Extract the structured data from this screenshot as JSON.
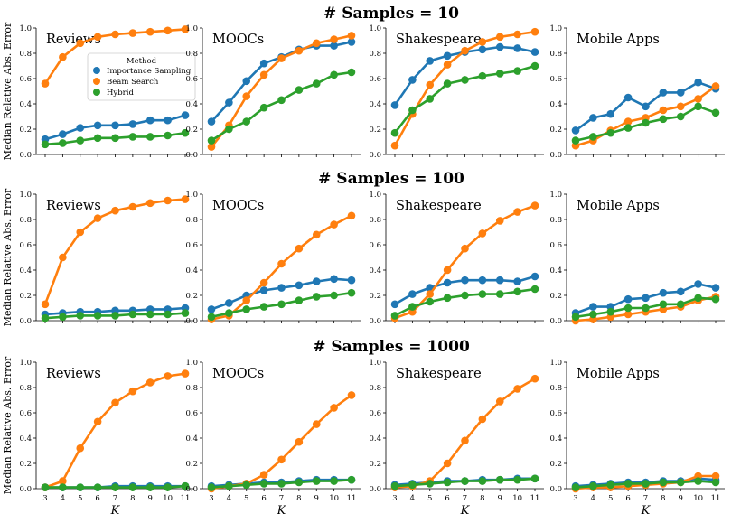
{
  "chart_data": {
    "type": "line",
    "x": [
      3,
      4,
      5,
      6,
      7,
      8,
      9,
      10,
      11
    ],
    "xlabel": "K",
    "ylabel": "Median Relative Abs. Error",
    "ylim": [
      0,
      1.0
    ],
    "yticks": [
      "0.0",
      "0.2",
      "0.4",
      "0.6",
      "0.8",
      "1.0"
    ],
    "grid": false,
    "legend": {
      "title": "Method",
      "placement": "center-right of first panel",
      "entries": [
        {
          "name": "Importance Sampling",
          "color": "#1f77b4"
        },
        {
          "name": "Beam Search",
          "color": "#ff7f0e"
        },
        {
          "name": "Hybrid",
          "color": "#2ca02c"
        }
      ]
    },
    "rows": [
      {
        "title": "# Samples = 10",
        "panels": [
          {
            "title": "Reviews",
            "series": [
              {
                "name": "Importance Sampling",
                "values": [
                  0.12,
                  0.16,
                  0.21,
                  0.23,
                  0.23,
                  0.24,
                  0.27,
                  0.27,
                  0.31
                ]
              },
              {
                "name": "Beam Search",
                "values": [
                  0.56,
                  0.77,
                  0.88,
                  0.93,
                  0.95,
                  0.96,
                  0.97,
                  0.98,
                  0.99
                ]
              },
              {
                "name": "Hybrid",
                "values": [
                  0.08,
                  0.09,
                  0.11,
                  0.13,
                  0.13,
                  0.14,
                  0.14,
                  0.15,
                  0.17
                ]
              }
            ]
          },
          {
            "title": "MOOCs",
            "series": [
              {
                "name": "Importance Sampling",
                "values": [
                  0.26,
                  0.41,
                  0.58,
                  0.72,
                  0.77,
                  0.83,
                  0.86,
                  0.86,
                  0.89
                ]
              },
              {
                "name": "Beam Search",
                "values": [
                  0.06,
                  0.23,
                  0.46,
                  0.63,
                  0.76,
                  0.82,
                  0.88,
                  0.91,
                  0.94
                ]
              },
              {
                "name": "Hybrid",
                "values": [
                  0.11,
                  0.2,
                  0.26,
                  0.37,
                  0.43,
                  0.51,
                  0.56,
                  0.63,
                  0.65
                ]
              }
            ]
          },
          {
            "title": "Shakespeare",
            "series": [
              {
                "name": "Importance Sampling",
                "values": [
                  0.39,
                  0.59,
                  0.74,
                  0.78,
                  0.81,
                  0.83,
                  0.85,
                  0.84,
                  0.81
                ]
              },
              {
                "name": "Beam Search",
                "values": [
                  0.07,
                  0.32,
                  0.55,
                  0.71,
                  0.82,
                  0.89,
                  0.93,
                  0.95,
                  0.97
                ]
              },
              {
                "name": "Hybrid",
                "values": [
                  0.17,
                  0.35,
                  0.44,
                  0.56,
                  0.59,
                  0.62,
                  0.64,
                  0.66,
                  0.7
                ]
              }
            ]
          },
          {
            "title": "Mobile Apps",
            "series": [
              {
                "name": "Importance Sampling",
                "values": [
                  0.19,
                  0.29,
                  0.32,
                  0.45,
                  0.38,
                  0.49,
                  0.49,
                  0.57,
                  0.52
                ]
              },
              {
                "name": "Beam Search",
                "values": [
                  0.07,
                  0.11,
                  0.19,
                  0.26,
                  0.29,
                  0.35,
                  0.38,
                  0.44,
                  0.54
                ]
              },
              {
                "name": "Hybrid",
                "values": [
                  0.11,
                  0.14,
                  0.17,
                  0.21,
                  0.25,
                  0.28,
                  0.3,
                  0.38,
                  0.33
                ]
              }
            ]
          }
        ]
      },
      {
        "title": "# Samples = 100",
        "panels": [
          {
            "title": "Reviews",
            "series": [
              {
                "name": "Importance Sampling",
                "values": [
                  0.05,
                  0.06,
                  0.07,
                  0.07,
                  0.08,
                  0.08,
                  0.09,
                  0.09,
                  0.1
                ]
              },
              {
                "name": "Beam Search",
                "values": [
                  0.13,
                  0.5,
                  0.7,
                  0.81,
                  0.87,
                  0.9,
                  0.93,
                  0.95,
                  0.96
                ]
              },
              {
                "name": "Hybrid",
                "values": [
                  0.02,
                  0.03,
                  0.04,
                  0.04,
                  0.04,
                  0.05,
                  0.05,
                  0.05,
                  0.06
                ]
              }
            ]
          },
          {
            "title": "MOOCs",
            "series": [
              {
                "name": "Importance Sampling",
                "values": [
                  0.09,
                  0.14,
                  0.2,
                  0.24,
                  0.26,
                  0.28,
                  0.31,
                  0.33,
                  0.32
                ]
              },
              {
                "name": "Beam Search",
                "values": [
                  0.01,
                  0.04,
                  0.16,
                  0.3,
                  0.45,
                  0.57,
                  0.68,
                  0.76,
                  0.83
                ]
              },
              {
                "name": "Hybrid",
                "values": [
                  0.03,
                  0.06,
                  0.09,
                  0.11,
                  0.13,
                  0.16,
                  0.19,
                  0.2,
                  0.22
                ]
              }
            ]
          },
          {
            "title": "Shakespeare",
            "series": [
              {
                "name": "Importance Sampling",
                "values": [
                  0.13,
                  0.21,
                  0.26,
                  0.3,
                  0.32,
                  0.32,
                  0.32,
                  0.31,
                  0.35
                ]
              },
              {
                "name": "Beam Search",
                "values": [
                  0.02,
                  0.07,
                  0.21,
                  0.4,
                  0.57,
                  0.69,
                  0.79,
                  0.86,
                  0.91
                ]
              },
              {
                "name": "Hybrid",
                "values": [
                  0.04,
                  0.11,
                  0.15,
                  0.18,
                  0.2,
                  0.21,
                  0.21,
                  0.23,
                  0.25
                ]
              }
            ]
          },
          {
            "title": "Mobile Apps",
            "series": [
              {
                "name": "Importance Sampling",
                "values": [
                  0.06,
                  0.11,
                  0.11,
                  0.17,
                  0.18,
                  0.22,
                  0.23,
                  0.29,
                  0.26
                ]
              },
              {
                "name": "Beam Search",
                "values": [
                  0.0,
                  0.01,
                  0.03,
                  0.05,
                  0.07,
                  0.09,
                  0.11,
                  0.16,
                  0.19
                ]
              },
              {
                "name": "Hybrid",
                "values": [
                  0.03,
                  0.05,
                  0.07,
                  0.1,
                  0.1,
                  0.13,
                  0.13,
                  0.18,
                  0.17
                ]
              }
            ]
          }
        ]
      },
      {
        "title": "# Samples = 1000",
        "panels": [
          {
            "title": "Reviews",
            "series": [
              {
                "name": "Importance Sampling",
                "values": [
                  0.01,
                  0.01,
                  0.01,
                  0.01,
                  0.02,
                  0.02,
                  0.02,
                  0.02,
                  0.02
                ]
              },
              {
                "name": "Beam Search",
                "values": [
                  0.01,
                  0.06,
                  0.32,
                  0.53,
                  0.68,
                  0.77,
                  0.84,
                  0.89,
                  0.91
                ]
              },
              {
                "name": "Hybrid",
                "values": [
                  0.01,
                  0.01,
                  0.01,
                  0.01,
                  0.01,
                  0.01,
                  0.01,
                  0.01,
                  0.02
                ]
              }
            ]
          },
          {
            "title": "MOOCs",
            "series": [
              {
                "name": "Importance Sampling",
                "values": [
                  0.02,
                  0.03,
                  0.04,
                  0.05,
                  0.05,
                  0.06,
                  0.07,
                  0.07,
                  0.07
                ]
              },
              {
                "name": "Beam Search",
                "values": [
                  0.0,
                  0.02,
                  0.04,
                  0.11,
                  0.23,
                  0.37,
                  0.51,
                  0.64,
                  0.74
                ]
              },
              {
                "name": "Hybrid",
                "values": [
                  0.01,
                  0.02,
                  0.03,
                  0.04,
                  0.04,
                  0.05,
                  0.06,
                  0.06,
                  0.07
                ]
              }
            ]
          },
          {
            "title": "Shakespeare",
            "series": [
              {
                "name": "Importance Sampling",
                "values": [
                  0.03,
                  0.04,
                  0.05,
                  0.06,
                  0.06,
                  0.07,
                  0.07,
                  0.08,
                  0.08
                ]
              },
              {
                "name": "Beam Search",
                "values": [
                  0.01,
                  0.02,
                  0.06,
                  0.2,
                  0.38,
                  0.55,
                  0.69,
                  0.79,
                  0.87
                ]
              },
              {
                "name": "Hybrid",
                "values": [
                  0.02,
                  0.03,
                  0.04,
                  0.05,
                  0.06,
                  0.06,
                  0.07,
                  0.07,
                  0.08
                ]
              }
            ]
          },
          {
            "title": "Mobile Apps",
            "series": [
              {
                "name": "Importance Sampling",
                "values": [
                  0.02,
                  0.03,
                  0.04,
                  0.05,
                  0.05,
                  0.06,
                  0.06,
                  0.08,
                  0.07
                ]
              },
              {
                "name": "Beam Search",
                "values": [
                  0.0,
                  0.01,
                  0.01,
                  0.02,
                  0.03,
                  0.04,
                  0.05,
                  0.1,
                  0.1
                ]
              },
              {
                "name": "Hybrid",
                "values": [
                  0.01,
                  0.02,
                  0.03,
                  0.04,
                  0.04,
                  0.05,
                  0.05,
                  0.06,
                  0.05
                ]
              }
            ]
          }
        ]
      }
    ]
  }
}
